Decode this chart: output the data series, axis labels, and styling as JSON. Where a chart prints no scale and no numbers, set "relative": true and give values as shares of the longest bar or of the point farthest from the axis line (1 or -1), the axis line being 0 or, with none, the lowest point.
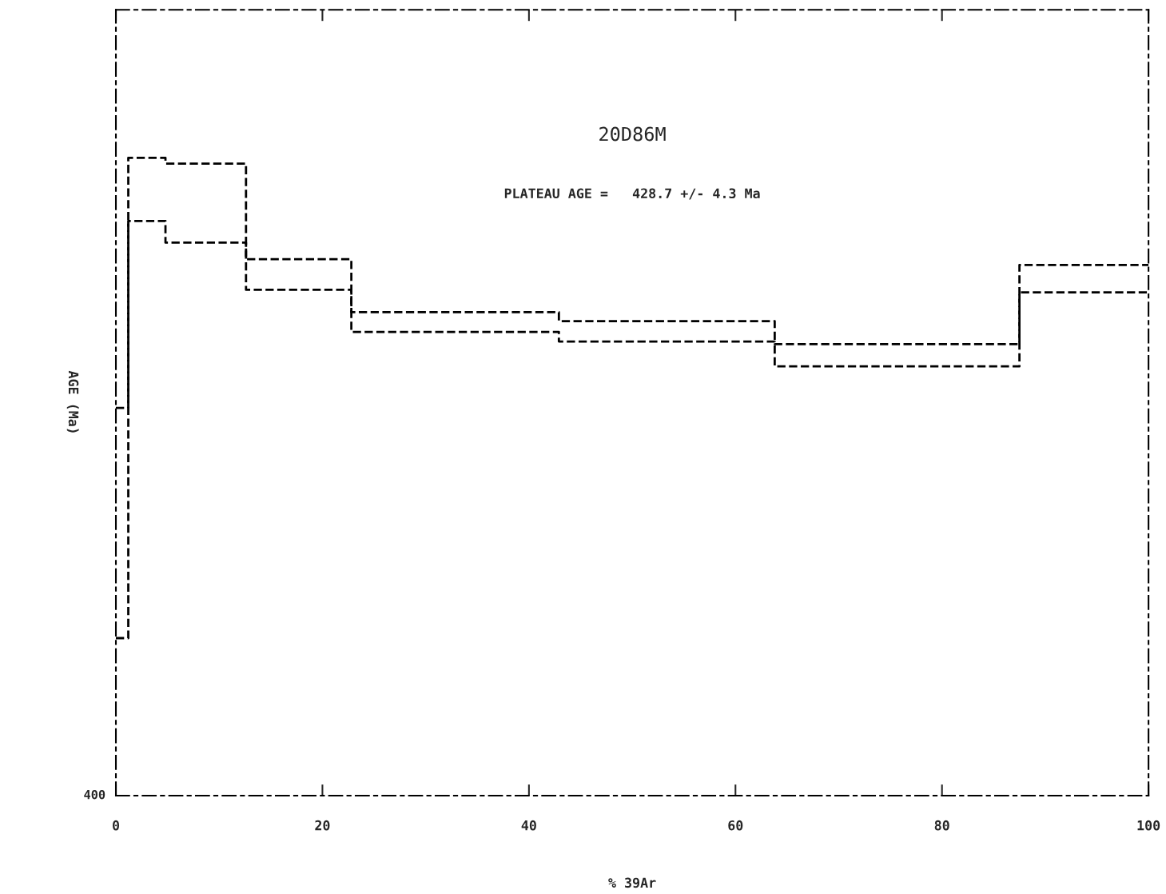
{
  "chart_data": {
    "type": "step",
    "title": "20D86M",
    "subtitle": "PLATEAU AGE =   428.7 +/- 4.3 Ma",
    "xlabel": "% 39Ar",
    "ylabel": "AGE (Ma)",
    "relative": true,
    "x": [
      0,
      1.2,
      4.8,
      12.6,
      22.8,
      42.9,
      63.8,
      87.5,
      100
    ],
    "series": [
      {
        "color": "#000000",
        "values": [
          0.608,
          1.0,
          0.991,
          0.841,
          0.758,
          0.744,
          0.708,
          0.832,
          0.832
        ]
      },
      {
        "color": "#000000",
        "values": [
          0.247,
          0.901,
          0.867,
          0.793,
          0.727,
          0.712,
          0.673,
          0.789,
          0.789
        ]
      }
    ],
    "xlim": [
      0,
      100
    ],
    "xticks": [
      0,
      20,
      40,
      60,
      80,
      100
    ],
    "line_style": "dashed",
    "grid": false,
    "legend": false,
    "annotations": [
      "400"
    ]
  }
}
